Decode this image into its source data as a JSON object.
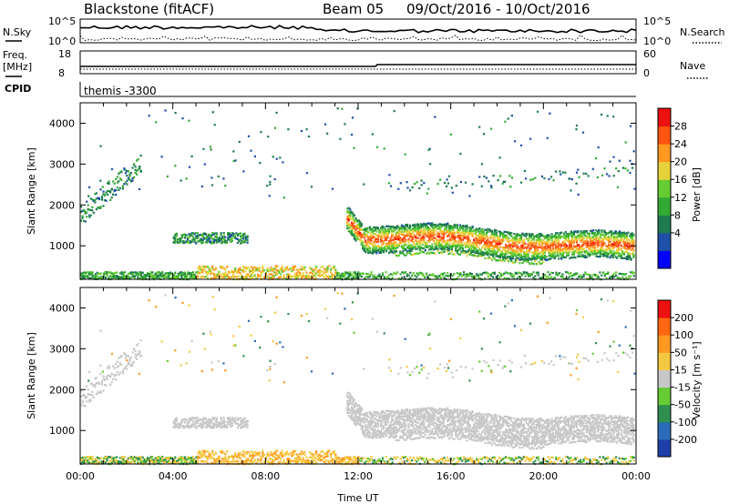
{
  "header": {
    "station": "Blackstone (fitACF)",
    "beam": "Beam 05",
    "date_range": "09/Oct/2016 - 10/Oct/2016"
  },
  "top_panels": {
    "nsky_label": "N.Sky",
    "nsearch_label": "N.Search",
    "noise_ticks": [
      "10^5",
      "10^0"
    ],
    "freq_label": "Freq.",
    "freq_unit": "[MHz]",
    "freq_ticks": [
      "18",
      "8"
    ],
    "nave_label": "Nave",
    "nave_ticks": [
      "60",
      "0"
    ],
    "cpid_label": "CPID",
    "cpid_value": "themis -3300"
  },
  "chart_data": [
    {
      "type": "heatmap",
      "name": "power",
      "ylabel": "Slant Range [km]",
      "xlabel": "",
      "xlim": [
        "00:00",
        "00:00"
      ],
      "ylim": [
        180,
        4500
      ],
      "y_ticks": [
        "4000",
        "3000",
        "2000",
        "1000"
      ],
      "colorbar_label": "Power [dB]",
      "colorbar_ticks": [
        "28",
        "24",
        "20",
        "16",
        "12",
        "8",
        "4"
      ],
      "colorbar_colors": [
        "#0000ff",
        "#1f4fa8",
        "#1f7a4f",
        "#33aa33",
        "#66cc33",
        "#e8d23c",
        "#ff9922",
        "#ff5511",
        "#ee1111"
      ]
    },
    {
      "type": "heatmap",
      "name": "velocity",
      "ylabel": "Slant Range [km]",
      "xlabel": "Time UT",
      "xlim": [
        "00:00",
        "00:00"
      ],
      "ylim": [
        180,
        4500
      ],
      "x_ticks": [
        "00:00",
        "04:00",
        "08:00",
        "12:00",
        "16:00",
        "20:00",
        "00:00"
      ],
      "y_ticks": [
        "4000",
        "3000",
        "2000",
        "1000"
      ],
      "colorbar_label": "Velocity [m s⁻¹]",
      "colorbar_ticks": [
        "200",
        "100",
        "50",
        "15",
        "-15",
        "-50",
        "-100",
        "-200"
      ],
      "colorbar_colors": [
        "#1f3fa8",
        "#2b6cb8",
        "#2f8f4f",
        "#66cc33",
        "#c8c8c8",
        "#f5c842",
        "#ff9922",
        "#ff6611",
        "#ee1111"
      ]
    }
  ]
}
